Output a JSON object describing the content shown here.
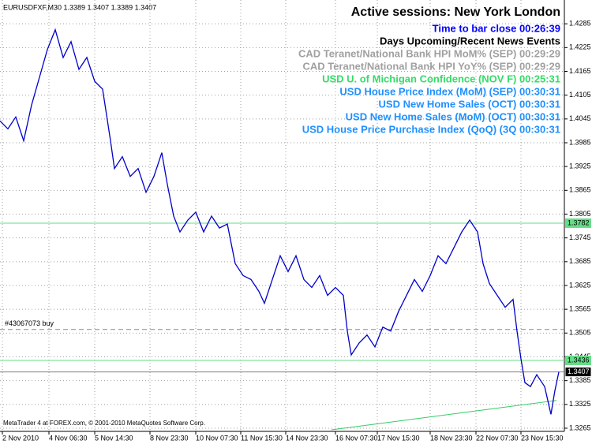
{
  "chart_data": {
    "type": "line",
    "header": "EURUSDFXF,M30  1.3389 1.3407 1.3389 1.3407",
    "title": "Active sessions: New York London",
    "annotations": [
      {
        "text": "Time to bar close 00:26:39",
        "color": "#0000ff"
      },
      {
        "text": "Days Upcoming/Recent News Events",
        "color": "#000000"
      },
      {
        "text": "CAD Teranet/National Bank HPI MoM% (SEP) 00:29:29",
        "color": "#a0a0a0"
      },
      {
        "text": "CAD Teranet/National Bank HPI YoY% (SEP) 00:29:29",
        "color": "#a0a0a0"
      },
      {
        "text": "USD U. of Michigan Confidence (NOV F) 00:25:31",
        "color": "#33dd66"
      },
      {
        "text": "USD House Price Index (MoM) (SEP) 00:30:31",
        "color": "#1e90ff"
      },
      {
        "text": "USD New Home Sales (OCT) 00:30:31",
        "color": "#1e90ff"
      },
      {
        "text": "USD New Home Sales (MoM) (OCT) 00:30:31",
        "color": "#1e90ff"
      },
      {
        "text": "USD House Price Purchase Index (QoQ) (3Q 00:30:31",
        "color": "#1e90ff"
      }
    ],
    "footer": "MetaTrader 4 at FOREX.com, © 2001-2010 MetaQuotes Software Corp.",
    "color": "#0000cc",
    "x": [
      0,
      10,
      20,
      30,
      40,
      50,
      60,
      70,
      80,
      90,
      100,
      110,
      120,
      130,
      140,
      145,
      155,
      165,
      175,
      185,
      195,
      205,
      212,
      220,
      228,
      238,
      248,
      258,
      268,
      278,
      288,
      298,
      308,
      318,
      328,
      335,
      345,
      355,
      365,
      375,
      385,
      395,
      405,
      415,
      425,
      435,
      440,
      445,
      455,
      465,
      475,
      485,
      495,
      505,
      515,
      525,
      535,
      545,
      555,
      565,
      575,
      585,
      595,
      605,
      612,
      620,
      630,
      640,
      650,
      655,
      660,
      665,
      672,
      680,
      690,
      698,
      703,
      708
    ],
    "values": [
      1.404,
      1.402,
      1.405,
      1.399,
      1.408,
      1.415,
      1.422,
      1.427,
      1.42,
      1.424,
      1.417,
      1.42,
      1.414,
      1.412,
      1.399,
      1.392,
      1.395,
      1.39,
      1.392,
      1.386,
      1.39,
      1.396,
      1.388,
      1.38,
      1.376,
      1.379,
      1.381,
      1.376,
      1.38,
      1.377,
      1.378,
      1.368,
      1.365,
      1.364,
      1.361,
      1.358,
      1.364,
      1.37,
      1.366,
      1.37,
      1.364,
      1.362,
      1.365,
      1.36,
      1.362,
      1.36,
      1.351,
      1.345,
      1.348,
      1.35,
      1.347,
      1.352,
      1.351,
      1.356,
      1.36,
      1.364,
      1.361,
      1.365,
      1.37,
      1.368,
      1.372,
      1.376,
      1.379,
      1.376,
      1.368,
      1.363,
      1.36,
      1.357,
      1.359,
      1.351,
      1.344,
      1.338,
      1.337,
      1.34,
      1.337,
      1.33,
      1.336,
      1.3407
    ],
    "xlim": [
      0,
      715
    ],
    "ylim": [
      1.3257,
      1.4345
    ],
    "xticks": [
      {
        "value": 3,
        "label": "2 Nov 2010"
      },
      {
        "value": 62,
        "label": "4 Nov 06:30"
      },
      {
        "value": 120,
        "label": "5 Nov 14:30"
      },
      {
        "value": 190,
        "label": "8 Nov 23:30"
      },
      {
        "value": 248,
        "label": "10 Nov 07:30"
      },
      {
        "value": 305,
        "label": "11 Nov 15:30"
      },
      {
        "value": 362,
        "label": "14 Nov 23:30"
      },
      {
        "value": 425,
        "label": "16 Nov 07:30"
      },
      {
        "value": 478,
        "label": "17 Nov 15:30"
      },
      {
        "value": 545,
        "label": "18 Nov 23:30"
      },
      {
        "value": 603,
        "label": "22 Nov 07:30"
      },
      {
        "value": 660,
        "label": "23 Nov 15:30"
      }
    ],
    "yticks": [
      1.4285,
      1.4225,
      1.4165,
      1.4105,
      1.4045,
      1.3985,
      1.3925,
      1.3865,
      1.3805,
      1.3745,
      1.3685,
      1.3625,
      1.3565,
      1.3505,
      1.3445,
      1.3385,
      1.3325,
      1.3265
    ],
    "grid": true,
    "levels": [
      {
        "value": 1.3782,
        "color": "#66dd88"
      },
      {
        "value": 1.3436,
        "color": "#66dd88"
      },
      {
        "value": 1.3407,
        "color": "#808080"
      }
    ],
    "order": {
      "value": 1.3514,
      "label": "#43067073 buy",
      "color": "#8080c0"
    },
    "trendline": {
      "x": [
        420,
        705
      ],
      "values": [
        1.3261,
        1.3335
      ],
      "color": "#33cc66"
    }
  }
}
